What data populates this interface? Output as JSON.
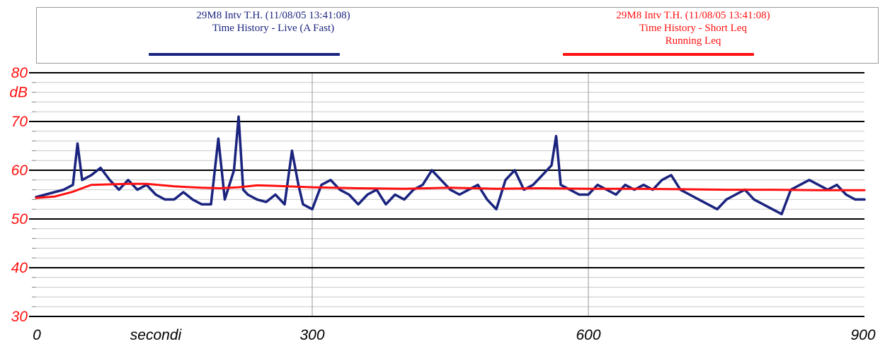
{
  "legend": [
    {
      "lines": [
        "29M8 Intv T.H. (11/08/05 13:41:08)",
        "Time History - Live (A Fast)"
      ],
      "color": "#1a237e"
    },
    {
      "lines": [
        "29M8 Intv T.H. (11/08/05 13:41:08)",
        "Time History - Short Leq",
        "Running Leq"
      ],
      "color": "#ff1010"
    }
  ],
  "colors": {
    "live": "#1a237e",
    "leq": "#ff1010",
    "axis_text": "#ff1010",
    "major_grid": "#000000",
    "minor_grid": "#c8c8c8",
    "vgrid": "#9a9a9a"
  },
  "chart_data": {
    "type": "line",
    "xlabel": "secondi",
    "ylabel": "dB",
    "xlim": [
      0,
      900
    ],
    "ylim": [
      30,
      80
    ],
    "x_ticks": [
      0,
      300,
      600,
      900
    ],
    "y_ticks": [
      30,
      40,
      50,
      60,
      70,
      80
    ],
    "grid": true,
    "legend_position": "top",
    "series": [
      {
        "name": "Time History - Live (A Fast)",
        "x": [
          0,
          10,
          20,
          30,
          40,
          45,
          50,
          60,
          70,
          80,
          90,
          100,
          110,
          120,
          130,
          140,
          150,
          160,
          170,
          180,
          190,
          198,
          205,
          215,
          220,
          225,
          230,
          240,
          250,
          260,
          270,
          278,
          285,
          290,
          300,
          310,
          320,
          330,
          340,
          350,
          360,
          370,
          380,
          390,
          400,
          410,
          420,
          430,
          440,
          450,
          460,
          470,
          480,
          490,
          500,
          510,
          520,
          530,
          540,
          550,
          560,
          565,
          570,
          580,
          590,
          600,
          610,
          620,
          630,
          640,
          650,
          660,
          670,
          680,
          690,
          700,
          710,
          720,
          730,
          740,
          750,
          760,
          770,
          780,
          790,
          800,
          810,
          820,
          830,
          840,
          850,
          860,
          870,
          880,
          890,
          900
        ],
        "y": [
          54.5,
          55,
          55.5,
          56,
          57,
          65.5,
          58,
          59,
          60.5,
          58,
          56,
          58,
          56,
          57,
          55,
          54,
          54,
          55.5,
          54,
          53,
          53,
          66.5,
          54,
          60,
          71,
          56,
          55,
          54,
          53.5,
          55,
          53,
          64,
          57,
          53,
          52,
          57,
          58,
          56,
          55,
          53,
          55,
          56,
          53,
          55,
          54,
          56,
          57,
          60,
          58,
          56,
          55,
          56,
          57,
          54,
          52,
          58,
          60,
          56,
          57,
          59,
          61,
          67,
          57,
          56,
          55,
          55,
          57,
          56,
          55,
          57,
          56,
          57,
          56,
          58,
          59,
          56,
          55,
          54,
          53,
          52,
          54,
          55,
          56,
          54,
          53,
          52,
          51,
          56,
          57,
          58,
          57,
          56,
          57,
          55,
          54,
          54
        ]
      },
      {
        "name": "Running Leq",
        "x": [
          0,
          20,
          40,
          60,
          80,
          100,
          120,
          150,
          180,
          200,
          220,
          240,
          260,
          300,
          350,
          400,
          450,
          500,
          550,
          600,
          650,
          700,
          750,
          800,
          850,
          900
        ],
        "y": [
          54.3,
          54.6,
          55.6,
          57.0,
          57.1,
          57.2,
          57.2,
          56.7,
          56.4,
          56.3,
          56.5,
          56.9,
          56.8,
          56.5,
          56.3,
          56.2,
          56.4,
          56.2,
          56.3,
          56.2,
          56.2,
          56.1,
          56.0,
          56.0,
          55.9,
          55.9
        ]
      }
    ]
  }
}
